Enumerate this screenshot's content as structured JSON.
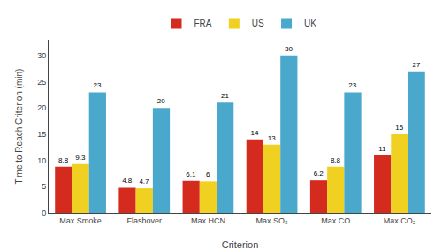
{
  "chart_data": {
    "type": "bar",
    "categories": [
      "Max Smoke",
      "Flashover",
      "Max HCN",
      "Max SO₂",
      "Max CO",
      "Max CO₂"
    ],
    "series": [
      {
        "name": "FRA",
        "color": "#d42b1e",
        "values": [
          8.8,
          4.8,
          6.1,
          14,
          6.2,
          11
        ]
      },
      {
        "name": "US",
        "color": "#f0d020",
        "values": [
          9.3,
          4.7,
          6,
          13,
          8.8,
          15
        ]
      },
      {
        "name": "UK",
        "color": "#4aa8cc",
        "values": [
          23,
          20,
          21,
          30,
          23,
          27
        ]
      }
    ],
    "xlabel": "Criterion",
    "ylabel": "Time to Reach Criterion (min)",
    "ylim": [
      0,
      33
    ],
    "yticks": [
      0,
      5,
      10,
      15,
      20,
      25,
      30
    ],
    "grid": false,
    "legend": "top",
    "data_labels": true
  }
}
